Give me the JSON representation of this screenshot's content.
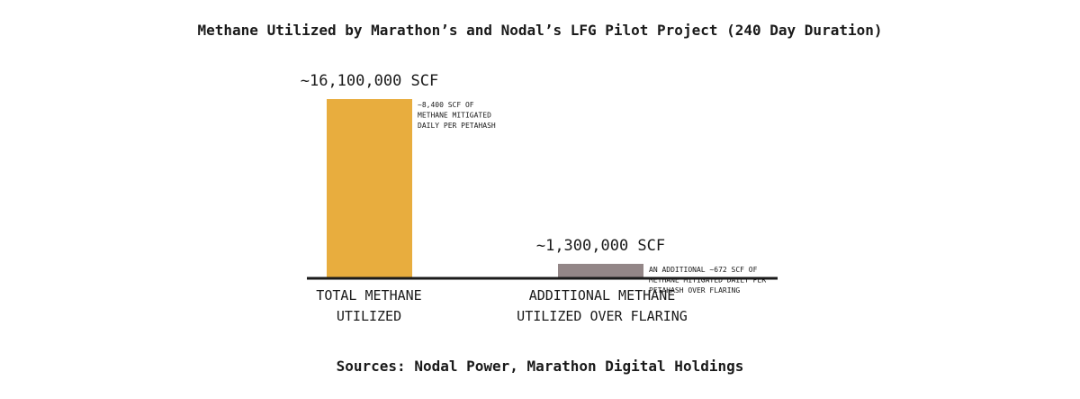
{
  "chart_data": {
    "type": "bar",
    "title": "Methane Utilized by Marathon’s and Nodal’s LFG Pilot Project (240 Day Duration)",
    "xlabel": "",
    "ylabel": "",
    "ylim": [
      0,
      17500000
    ],
    "grid": false,
    "legend": "none",
    "categories": [
      [
        "TOTAL METHANE",
        "UTILIZED"
      ],
      [
        "ADDITIONAL METHANE",
        "UTILIZED OVER FLARING"
      ]
    ],
    "values": [
      16100000,
      1300000
    ],
    "value_labels": [
      "~16,100,000 SCF",
      "~1,300,000 SCF"
    ],
    "colors": [
      "#e8ad3e",
      "#938687"
    ],
    "annotations": [
      [
        "~8,400 SCF OF",
        "METHANE MITIGATED",
        "DAILY PER PETAHASH"
      ],
      [
        "AN ADDITIONAL ~672 SCF OF",
        "METHANE MITIGATED DAILY PER",
        "PETAHASH OVER FLARING"
      ]
    ]
  },
  "source": "Sources: Nodal Power, Marathon Digital Holdings",
  "colors": {
    "axis": "#1a1a1a",
    "text": "#1a1a1a"
  }
}
